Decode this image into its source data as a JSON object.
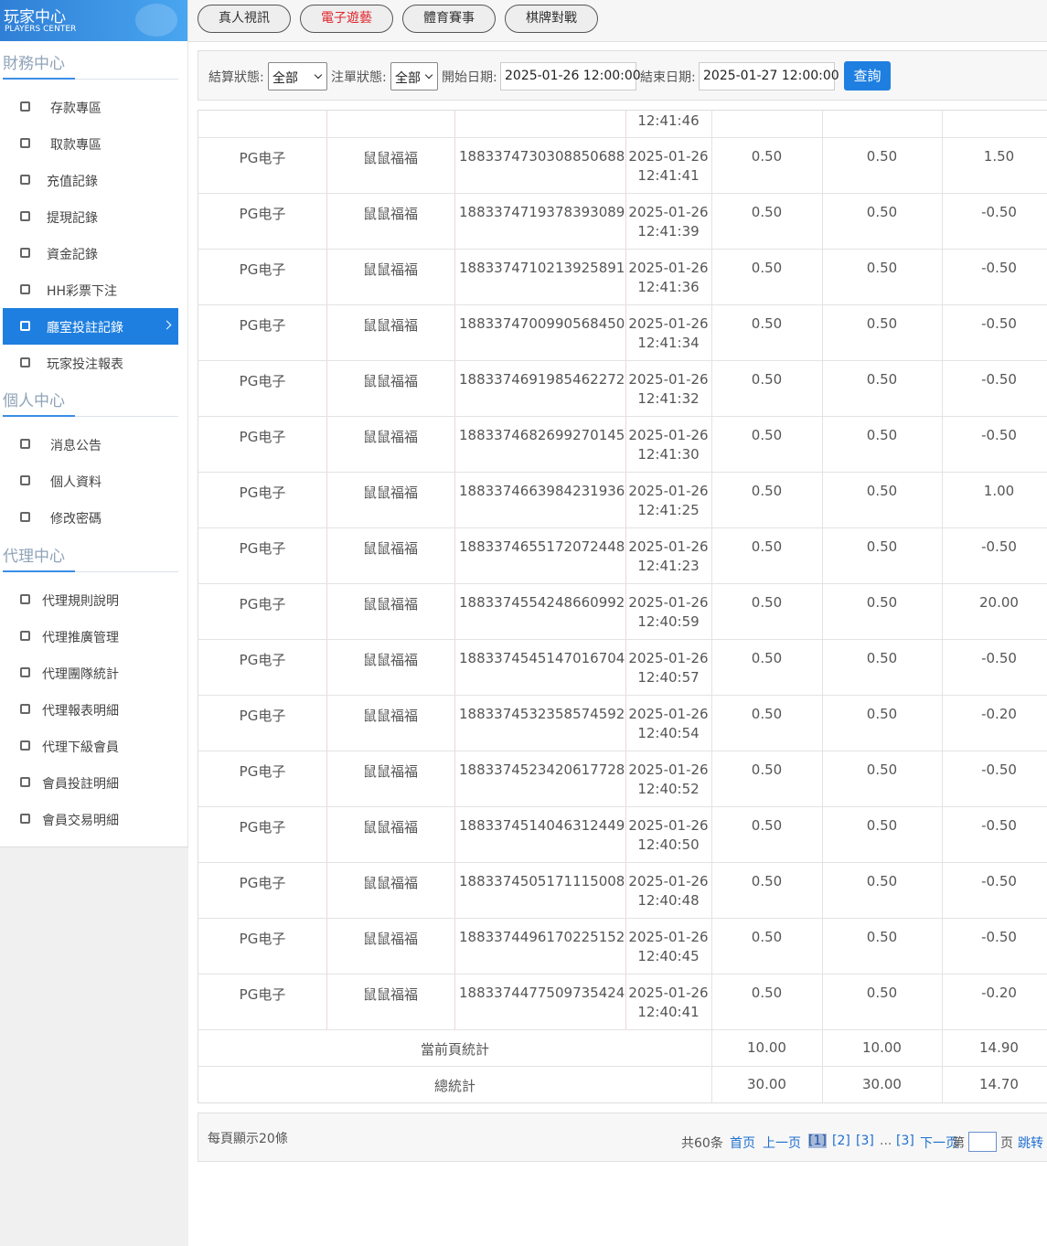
{
  "sidebar": {
    "title": "玩家中心",
    "subtitle": "PLAYERS CENTER",
    "sections": [
      {
        "title": "財務中心",
        "items": [
          "存款專區",
          "取款專區",
          "充值記錄",
          "提現記錄",
          "資金記錄",
          "HH彩票下注",
          "廳室投註記錄",
          "玩家投注報表"
        ]
      },
      {
        "title": "個人中心",
        "items": [
          "消息公告",
          "個人資料",
          "修改密碼"
        ]
      },
      {
        "title": "代理中心",
        "items": [
          "代理規則說明",
          "代理推廣管理",
          "代理團隊統計",
          "代理報表明細",
          "代理下級會員",
          "會員投註明細",
          "會員交易明細"
        ]
      }
    ]
  },
  "tabs": [
    "真人視訊",
    "電子遊藝",
    "體育賽事",
    "棋牌對戰"
  ],
  "filters": {
    "settle_label": "結算狀態:",
    "settle_value": "全部",
    "order_label": "注單狀態:",
    "order_value": "全部",
    "start_label": "開始日期:",
    "start_value": "2025-01-26 12:00:00",
    "end_label": "結束日期:",
    "end_value": "2025-01-27 12:00:00",
    "button": "查詢"
  },
  "table": {
    "partial_row_time": "12:41:46",
    "rows": [
      [
        "PG电子",
        "鼠鼠福福",
        "1883374730308850688",
        "2025-01-26",
        "12:41:41",
        "0.50",
        "0.50",
        "1.50"
      ],
      [
        "PG电子",
        "鼠鼠福福",
        "1883374719378393089",
        "2025-01-26",
        "12:41:39",
        "0.50",
        "0.50",
        "-0.50"
      ],
      [
        "PG电子",
        "鼠鼠福福",
        "1883374710213925891",
        "2025-01-26",
        "12:41:36",
        "0.50",
        "0.50",
        "-0.50"
      ],
      [
        "PG电子",
        "鼠鼠福福",
        "1883374700990568450",
        "2025-01-26",
        "12:41:34",
        "0.50",
        "0.50",
        "-0.50"
      ],
      [
        "PG电子",
        "鼠鼠福福",
        "1883374691985462272",
        "2025-01-26",
        "12:41:32",
        "0.50",
        "0.50",
        "-0.50"
      ],
      [
        "PG电子",
        "鼠鼠福福",
        "1883374682699270145",
        "2025-01-26",
        "12:41:30",
        "0.50",
        "0.50",
        "-0.50"
      ],
      [
        "PG电子",
        "鼠鼠福福",
        "1883374663984231936",
        "2025-01-26",
        "12:41:25",
        "0.50",
        "0.50",
        "1.00"
      ],
      [
        "PG电子",
        "鼠鼠福福",
        "1883374655172072448",
        "2025-01-26",
        "12:41:23",
        "0.50",
        "0.50",
        "-0.50"
      ],
      [
        "PG电子",
        "鼠鼠福福",
        "1883374554248660992",
        "2025-01-26",
        "12:40:59",
        "0.50",
        "0.50",
        "20.00"
      ],
      [
        "PG电子",
        "鼠鼠福福",
        "1883374545147016704",
        "2025-01-26",
        "12:40:57",
        "0.50",
        "0.50",
        "-0.50"
      ],
      [
        "PG电子",
        "鼠鼠福福",
        "1883374532358574592",
        "2025-01-26",
        "12:40:54",
        "0.50",
        "0.50",
        "-0.20"
      ],
      [
        "PG电子",
        "鼠鼠福福",
        "1883374523420617728",
        "2025-01-26",
        "12:40:52",
        "0.50",
        "0.50",
        "-0.50"
      ],
      [
        "PG电子",
        "鼠鼠福福",
        "1883374514046312449",
        "2025-01-26",
        "12:40:50",
        "0.50",
        "0.50",
        "-0.50"
      ],
      [
        "PG电子",
        "鼠鼠福福",
        "1883374505171115008",
        "2025-01-26",
        "12:40:48",
        "0.50",
        "0.50",
        "-0.50"
      ],
      [
        "PG电子",
        "鼠鼠福福",
        "1883374496170225152",
        "2025-01-26",
        "12:40:45",
        "0.50",
        "0.50",
        "-0.50"
      ],
      [
        "PG电子",
        "鼠鼠福福",
        "1883374477509735424",
        "2025-01-26",
        "12:40:41",
        "0.50",
        "0.50",
        "-0.20"
      ]
    ],
    "page_total": {
      "label": "當前頁統計",
      "values": [
        "10.00",
        "10.00",
        "14.90"
      ]
    },
    "grand_total": {
      "label": "總統計",
      "values": [
        "30.00",
        "30.00",
        "14.70"
      ]
    }
  },
  "pagination": {
    "page_size_text": "每頁顯示20條",
    "total": "共60条",
    "links": [
      "首页",
      "上一页",
      "[1]",
      "[2]",
      "[3]",
      "...",
      "[3]",
      "下一页"
    ],
    "goto_prefix": "第",
    "goto_suffix": "页",
    "goto": "跳转"
  }
}
